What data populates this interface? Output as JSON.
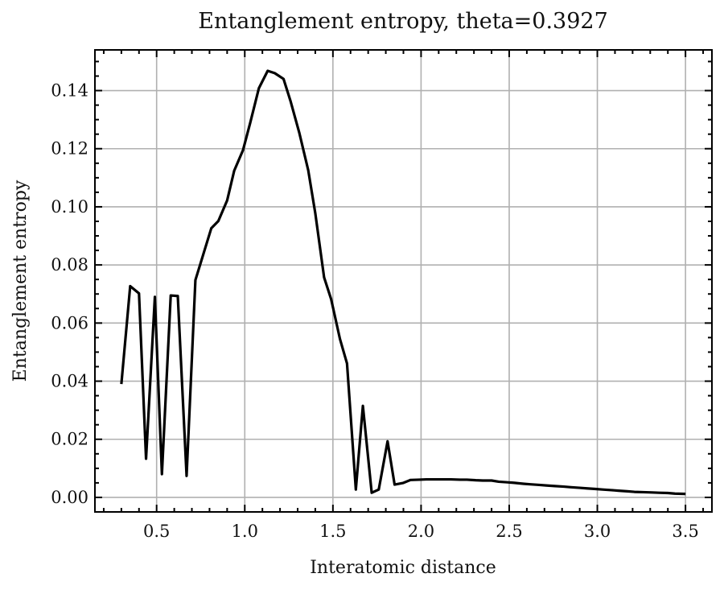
{
  "chart_data": {
    "type": "line",
    "title": "Entanglement entropy, theta=0.3927",
    "xlabel": "Interatomic distance",
    "ylabel": "Entanglement entropy",
    "xlim": [
      0.15,
      3.65
    ],
    "ylim": [
      -0.005,
      0.154
    ],
    "grid": true,
    "x_ticks": [
      0.5,
      1.0,
      1.5,
      2.0,
      2.5,
      3.0,
      3.5
    ],
    "x_tick_labels": [
      "0.5",
      "1.0",
      "1.5",
      "2.0",
      "2.5",
      "3.0",
      "3.5"
    ],
    "y_ticks": [
      0.0,
      0.02,
      0.04,
      0.06,
      0.08,
      0.1,
      0.12,
      0.14
    ],
    "y_tick_labels": [
      "0.00",
      "0.02",
      "0.04",
      "0.06",
      "0.08",
      "0.10",
      "0.12",
      "0.14"
    ],
    "series": [
      {
        "color": "#000000",
        "x": [
          0.3,
          0.35,
          0.4,
          0.44,
          0.49,
          0.53,
          0.58,
          0.62,
          0.67,
          0.72,
          0.76,
          0.81,
          0.85,
          0.9,
          0.94,
          0.99,
          1.03,
          1.08,
          1.13,
          1.17,
          1.22,
          1.26,
          1.31,
          1.36,
          1.4,
          1.45,
          1.49,
          1.54,
          1.58,
          1.63,
          1.67,
          1.72,
          1.76,
          1.81,
          1.85,
          1.9,
          1.94,
          1.99,
          2.03,
          2.08,
          2.12,
          2.17,
          2.22,
          2.26,
          2.31,
          2.35,
          2.4,
          2.44,
          2.49,
          2.53,
          2.58,
          2.62,
          2.67,
          2.71,
          2.76,
          2.81,
          2.85,
          2.9,
          2.94,
          2.99,
          3.03,
          3.08,
          3.12,
          3.17,
          3.21,
          3.26,
          3.31,
          3.35,
          3.4,
          3.44,
          3.5
        ],
        "y": [
          0.039,
          0.0727,
          0.0702,
          0.0133,
          0.069,
          0.008,
          0.0695,
          0.0693,
          0.0074,
          0.0748,
          0.0827,
          0.0926,
          0.0951,
          0.1022,
          0.1124,
          0.1195,
          0.1287,
          0.1408,
          0.1468,
          0.146,
          0.144,
          0.1363,
          0.1253,
          0.1126,
          0.0978,
          0.0757,
          0.0682,
          0.0545,
          0.0461,
          0.0027,
          0.0315,
          0.0016,
          0.0027,
          0.0193,
          0.0044,
          0.005,
          0.006,
          0.0061,
          0.0062,
          0.0062,
          0.0062,
          0.0062,
          0.0061,
          0.0061,
          0.0059,
          0.0058,
          0.0058,
          0.0054,
          0.0052,
          0.005,
          0.0047,
          0.0045,
          0.0043,
          0.0041,
          0.0039,
          0.0037,
          0.0035,
          0.0033,
          0.0031,
          0.0029,
          0.0027,
          0.0025,
          0.0023,
          0.0021,
          0.0019,
          0.0018,
          0.0017,
          0.0016,
          0.0015,
          0.0013,
          0.0012
        ]
      }
    ]
  }
}
